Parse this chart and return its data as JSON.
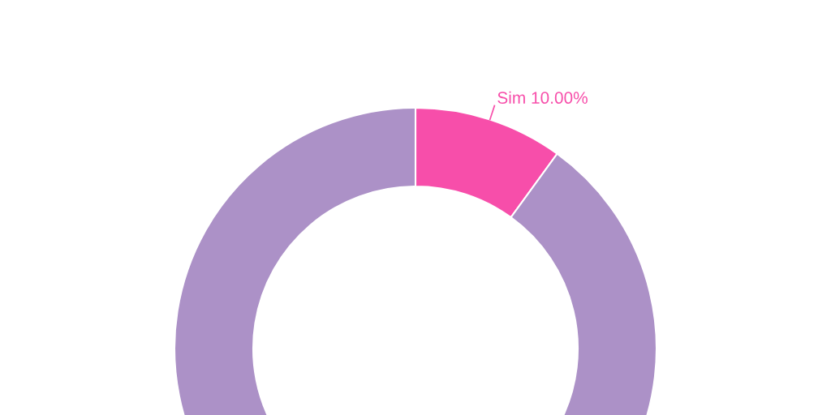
{
  "chart_data": {
    "type": "donut",
    "categories": [
      "Sim",
      null
    ],
    "values": [
      10,
      90
    ],
    "colors": [
      "#f74eaa",
      "#ac91c7"
    ],
    "value_labels": [
      "10.00%",
      null
    ]
  }
}
